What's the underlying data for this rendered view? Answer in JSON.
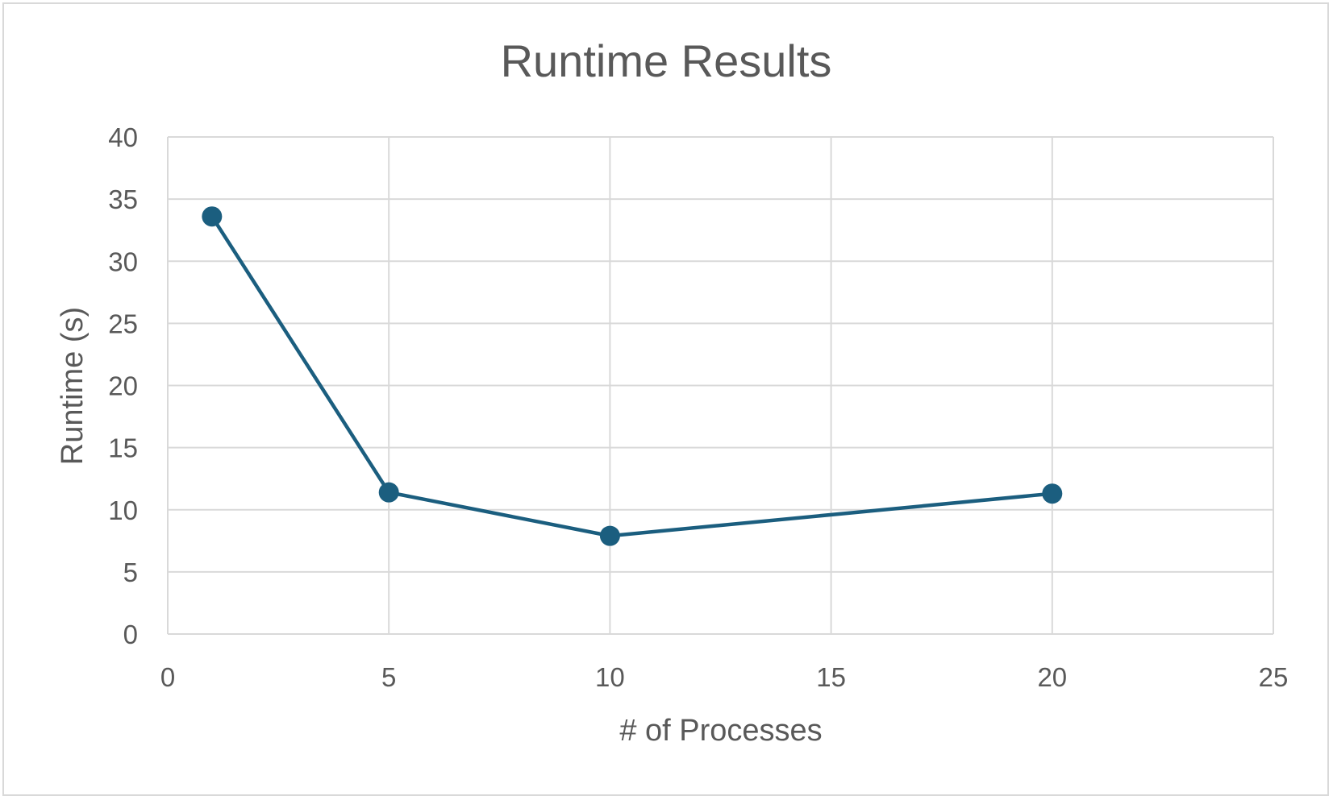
{
  "chart_data": {
    "type": "scatter",
    "title": "Runtime Results",
    "xlabel": "# of Processes",
    "ylabel": "Runtime (s)",
    "xlim": [
      0,
      25
    ],
    "ylim": [
      0,
      40
    ],
    "x_ticks": [
      "0",
      "5",
      "10",
      "15",
      "20",
      "25"
    ],
    "y_ticks": [
      "0",
      "5",
      "10",
      "15",
      "20",
      "25",
      "30",
      "35",
      "40"
    ],
    "grid": true,
    "legend": "none",
    "series": [
      {
        "color": "#1b5e7f",
        "mode": "lines+markers",
        "points": [
          {
            "x": 1,
            "y": 33.6
          },
          {
            "x": 5,
            "y": 11.4
          },
          {
            "x": 10,
            "y": 7.9
          },
          {
            "x": 20,
            "y": 11.3
          }
        ]
      }
    ]
  }
}
